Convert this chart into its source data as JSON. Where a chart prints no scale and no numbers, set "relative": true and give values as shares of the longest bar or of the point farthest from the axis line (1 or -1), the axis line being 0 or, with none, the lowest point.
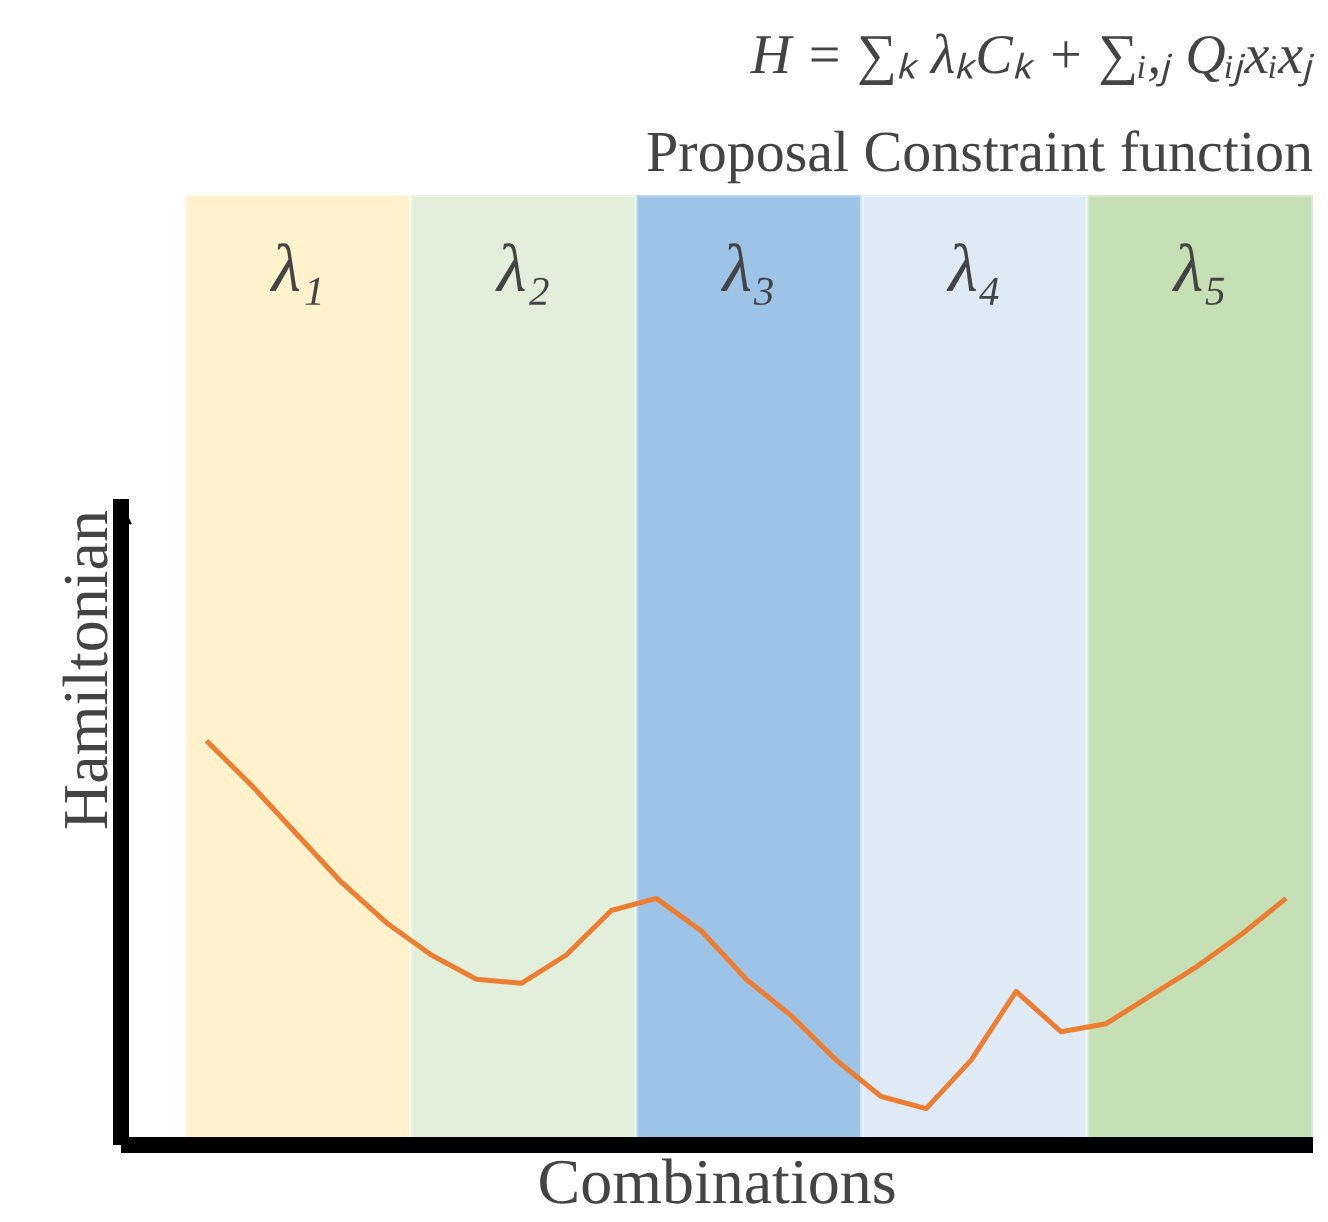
{
  "chart_data": {
    "type": "line",
    "title": "H = ∑ₖ λₖCₖ + ∑ᵢ,ⱼ Qᵢⱼxᵢxⱼ",
    "subtitle": "Proposal Constraint function",
    "xlabel": "Combinations",
    "ylabel": "Hamiltonian",
    "relative": true,
    "categories": [
      null,
      null,
      null,
      null,
      null,
      null,
      null,
      null,
      null,
      null,
      null,
      null,
      null,
      null,
      null,
      null,
      null,
      null,
      null,
      null,
      null,
      null,
      null,
      null,
      null
    ],
    "series": [
      {
        "color": "#ed7d31",
        "values": [
          1.0,
          0.89,
          0.77,
          0.65,
          0.55,
          0.47,
          0.41,
          0.4,
          0.47,
          0.58,
          0.61,
          0.53,
          0.41,
          0.32,
          0.21,
          0.12,
          0.09,
          0.21,
          0.38,
          0.28,
          0.3,
          0.37,
          0.44,
          0.52,
          0.61
        ]
      }
    ],
    "annotations": [
      "λ₁",
      "λ₂",
      "λ₃",
      "λ₄",
      "λ₅"
    ]
  }
}
